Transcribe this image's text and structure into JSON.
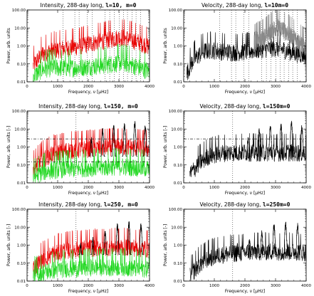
{
  "figure": {
    "colors": {
      "red": "#e80000",
      "green": "#22d822",
      "black": "#000000",
      "grey": "#8a8a8a"
    },
    "y_ticks": [
      "100.00",
      "10.00",
      "1.00",
      "0.10",
      "0.01"
    ],
    "x_ticks": [
      "0",
      "1000",
      "2000",
      "3000",
      "4000"
    ]
  },
  "chart_data": [
    {
      "type": "line",
      "title": "Intensity, 288-day long,",
      "title_suffix": "l=10,  m=0",
      "xlabel": "Frequency, ν [μHz]",
      "ylabel": "Power, arb. units",
      "xlim": [
        0,
        4000
      ],
      "ylim": [
        0.01,
        100
      ],
      "y_scale": "log",
      "series": [
        {
          "color": "#e80000",
          "x": [
            200,
            500,
            800,
            1200,
            1600,
            2000,
            2400,
            2800,
            3100,
            3400,
            3800,
            4000
          ],
          "values": [
            0.08,
            0.35,
            0.55,
            0.7,
            0.9,
            1.3,
            1.8,
            2.5,
            3.0,
            2.2,
            1.3,
            0.9
          ]
        },
        {
          "color": "#22d822",
          "x": [
            200,
            500,
            800,
            1200,
            1600,
            2000,
            2400,
            2800,
            3100,
            3400,
            3800,
            4000
          ],
          "values": [
            0.02,
            0.05,
            0.06,
            0.06,
            0.06,
            0.07,
            0.08,
            0.1,
            0.12,
            0.09,
            0.05,
            0.04
          ]
        }
      ],
      "vlines": [
        1180,
        1560,
        1700,
        1970,
        2130,
        2550,
        2700,
        2850,
        3010,
        3150,
        3280,
        3430,
        3560,
        3710
      ],
      "hlines": [],
      "peaks": []
    },
    {
      "type": "line",
      "title": "Velocity, 288-day long,",
      "title_suffix": "l=10m=0",
      "xlabel": "Frequency, ν [μHz]",
      "ylabel": "Power, arb. units",
      "xlim": [
        0,
        4000
      ],
      "ylim": [
        0.01,
        100
      ],
      "y_scale": "log",
      "series": [
        {
          "color": "#000000",
          "x": [
            100,
            300,
            600,
            900,
            1200,
            1500,
            1800,
            2100,
            2400,
            2700,
            3000,
            3300,
            3600,
            4000
          ],
          "values": [
            0.03,
            0.15,
            0.45,
            0.6,
            0.5,
            0.45,
            0.45,
            0.5,
            0.6,
            0.7,
            0.75,
            0.6,
            0.4,
            0.3
          ]
        },
        {
          "color": "#8a8a8a",
          "x": [
            2300,
            2600,
            2900,
            3050,
            3200,
            3500,
            3800,
            4000
          ],
          "values": [
            1.5,
            3,
            8,
            12,
            9,
            4,
            1.5,
            0.8
          ]
        }
      ],
      "vlines": [
        1180,
        1560,
        1700,
        1970,
        2130,
        2550,
        2700,
        2850,
        3010,
        3150,
        3280,
        3430,
        3560,
        3710
      ],
      "hlines": [],
      "peaks": []
    },
    {
      "type": "line",
      "title": "Intensity, 288-day long,",
      "title_suffix": "l=150,  m=0",
      "xlabel": "Frequency, ν [μHz]",
      "ylabel": "Power, arb. units [-]",
      "xlim": [
        0,
        4000
      ],
      "ylim": [
        0.01,
        100
      ],
      "y_scale": "log",
      "series": [
        {
          "color": "#e80000",
          "x": [
            200,
            500,
            800,
            1200,
            1600,
            2000,
            2400,
            2800,
            3200,
            3600,
            4000
          ],
          "values": [
            0.06,
            0.2,
            0.4,
            0.6,
            0.7,
            0.8,
            0.9,
            1.0,
            1.0,
            0.9,
            0.8
          ]
        },
        {
          "color": "#22d822",
          "x": [
            200,
            500,
            800,
            1200,
            1600,
            2000,
            2400,
            2800,
            3200,
            3600,
            4000
          ],
          "values": [
            0.02,
            0.04,
            0.05,
            0.06,
            0.06,
            0.07,
            0.07,
            0.08,
            0.08,
            0.07,
            0.06
          ]
        }
      ],
      "vlines": [
        1600
      ],
      "hlines": [
        2.8,
        0.15
      ],
      "peaks": [
        {
          "x": 2100,
          "y": 2.5
        },
        {
          "x": 2470,
          "y": 8
        },
        {
          "x": 2830,
          "y": 12
        },
        {
          "x": 3180,
          "y": 15
        },
        {
          "x": 3520,
          "y": 20
        },
        {
          "x": 3860,
          "y": 12
        }
      ]
    },
    {
      "type": "line",
      "title": "Velocity, 288-day long,",
      "title_suffix": "l=150m=0",
      "xlabel": "Frequency, ν [μHz]",
      "ylabel": "Power, arb. units [-]",
      "xlim": [
        0,
        4000
      ],
      "ylim": [
        0.01,
        100
      ],
      "y_scale": "log",
      "series": [
        {
          "color": "#000000",
          "x": [
            200,
            500,
            800,
            1200,
            1600,
            2000,
            2400,
            2800,
            3200,
            3600,
            4000
          ],
          "values": [
            0.03,
            0.12,
            0.3,
            0.45,
            0.5,
            0.5,
            0.5,
            0.5,
            0.5,
            0.5,
            0.45
          ]
        }
      ],
      "vlines": [
        1600
      ],
      "hlines": [
        2.8
      ],
      "peaks": [
        {
          "x": 2100,
          "y": 2.5
        },
        {
          "x": 2470,
          "y": 8
        },
        {
          "x": 2830,
          "y": 12
        },
        {
          "x": 3180,
          "y": 15
        },
        {
          "x": 3520,
          "y": 20
        },
        {
          "x": 3860,
          "y": 12
        }
      ]
    },
    {
      "type": "line",
      "title": "Intensity, 288-day long,",
      "title_suffix": "l=250,  m=0",
      "xlabel": "Frequency, ν [μHz]",
      "ylabel": "Power, arb. units [-]",
      "xlim": [
        0,
        4000
      ],
      "ylim": [
        0.01,
        100
      ],
      "y_scale": "log",
      "series": [
        {
          "color": "#e80000",
          "x": [
            200,
            500,
            800,
            1200,
            1600,
            2000,
            2400,
            2800,
            3200,
            3600,
            4000
          ],
          "values": [
            0.05,
            0.15,
            0.3,
            0.5,
            0.6,
            0.7,
            0.75,
            0.8,
            0.8,
            0.7,
            0.6
          ]
        },
        {
          "color": "#22d822",
          "x": [
            200,
            500,
            800,
            1200,
            1600,
            2000,
            2400,
            2800,
            3200,
            3600,
            4000
          ],
          "values": [
            0.02,
            0.03,
            0.04,
            0.05,
            0.05,
            0.06,
            0.06,
            0.06,
            0.06,
            0.05,
            0.05
          ]
        }
      ],
      "vlines": [
        1600
      ],
      "hlines": [],
      "peaks": [
        {
          "x": 1750,
          "y": 1.0
        },
        {
          "x": 2150,
          "y": 2.0
        },
        {
          "x": 2550,
          "y": 5
        },
        {
          "x": 2950,
          "y": 12
        },
        {
          "x": 3330,
          "y": 15
        },
        {
          "x": 3720,
          "y": 12
        }
      ]
    },
    {
      "type": "line",
      "title": "Velocity, 288-day long,",
      "title_suffix": "l=250m=0",
      "xlabel": "Frequency, ν [μHz]",
      "ylabel": "Power, arb. units [-]",
      "xlim": [
        0,
        4000
      ],
      "ylim": [
        0.01,
        100
      ],
      "y_scale": "log",
      "series": [
        {
          "color": "#000000",
          "x": [
            200,
            500,
            800,
            1200,
            1600,
            2000,
            2400,
            2800,
            3200,
            3600,
            4000
          ],
          "values": [
            0.02,
            0.08,
            0.18,
            0.3,
            0.35,
            0.4,
            0.45,
            0.45,
            0.45,
            0.45,
            0.4
          ]
        }
      ],
      "vlines": [
        1600
      ],
      "hlines": [],
      "peaks": [
        {
          "x": 1750,
          "y": 1.0
        },
        {
          "x": 2150,
          "y": 2.0
        },
        {
          "x": 2550,
          "y": 5
        },
        {
          "x": 2950,
          "y": 12
        },
        {
          "x": 3330,
          "y": 15
        },
        {
          "x": 3720,
          "y": 12
        }
      ]
    }
  ]
}
